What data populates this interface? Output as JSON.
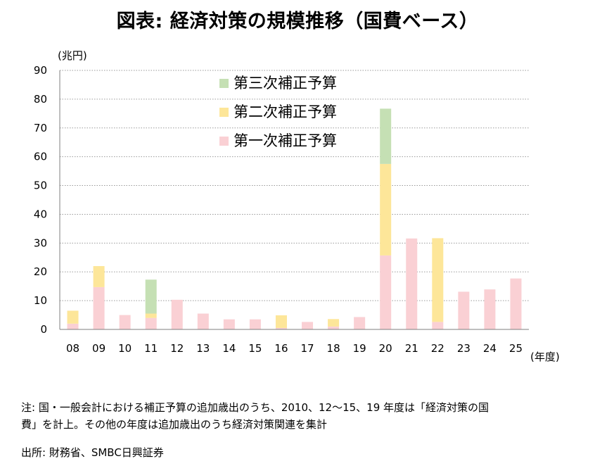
{
  "title": "図表: 経済対策の規模推移（国費ベース）",
  "notes": [
    "注: 国・一般会計における補正予算の追加歳出のうち、2010、12〜15、19 年度は「経済対策の国",
    "費」を計上。その他の年度は追加歳出のうち経済対策関連を集計"
  ],
  "source": "出所: 財務省、SMBC日興証券",
  "chart_data": {
    "type": "bar",
    "stacked": true,
    "categories": [
      "08",
      "09",
      "10",
      "11",
      "12",
      "13",
      "14",
      "15",
      "16",
      "17",
      "18",
      "19",
      "20",
      "21",
      "22",
      "23",
      "24",
      "25"
    ],
    "series": [
      {
        "name": "第一次補正予算",
        "color": "#fad0d4",
        "values": [
          2.0,
          14.7,
          5.0,
          4.0,
          10.3,
          5.5,
          3.5,
          3.5,
          0.5,
          2.6,
          1.0,
          4.3,
          25.7,
          31.6,
          2.6,
          13.1,
          13.9,
          17.7
        ]
      },
      {
        "name": "第二次補正予算",
        "color": "#fde699",
        "values": [
          4.5,
          7.3,
          0,
          1.5,
          0,
          0,
          0,
          0,
          4.4,
          0,
          2.6,
          0,
          31.8,
          0,
          29.1,
          0,
          0,
          0
        ]
      },
      {
        "name": "第三次補正予算",
        "color": "#c5e0b4",
        "values": [
          0,
          0,
          0,
          11.8,
          0,
          0,
          0,
          0,
          0,
          0,
          0,
          0,
          19.2,
          0,
          0,
          0,
          0,
          0
        ]
      }
    ],
    "ylim": [
      0,
      90
    ],
    "yticks": [
      0,
      10,
      20,
      30,
      40,
      50,
      60,
      70,
      80,
      90
    ],
    "y_unit": "(兆円)",
    "x_unit": "(年度)",
    "grid": true,
    "legend_position": "top-center",
    "legend_order": [
      "第三次補正予算",
      "第二次補正予算",
      "第一次補正予算"
    ]
  }
}
